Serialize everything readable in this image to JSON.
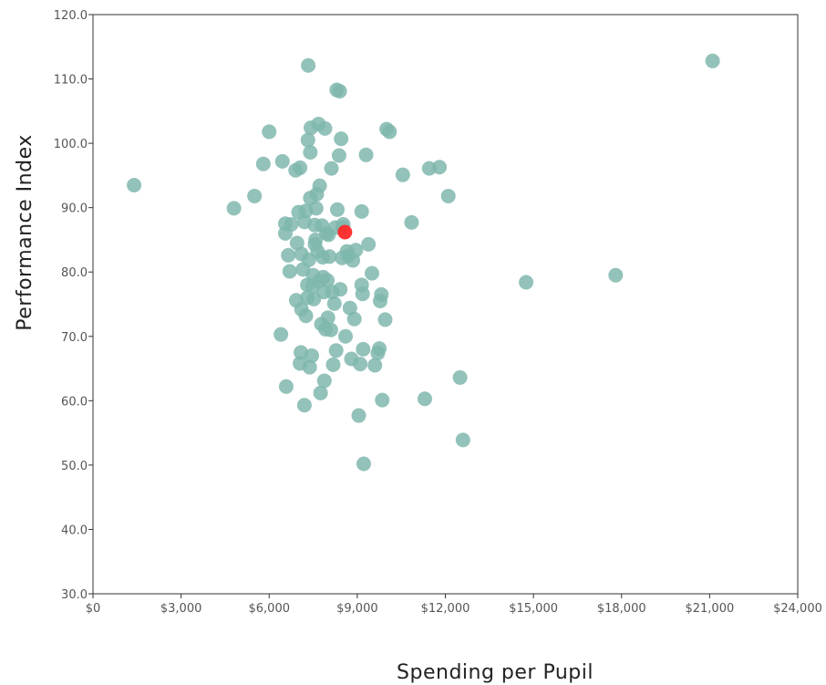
{
  "chart_data": {
    "type": "scatter",
    "xlabel": "Spending per Pupil",
    "ylabel": "Performance Index",
    "xlim": [
      0,
      24000
    ],
    "ylim": [
      30,
      120
    ],
    "x_ticks": [
      0,
      3000,
      6000,
      9000,
      12000,
      15000,
      18000,
      21000,
      24000
    ],
    "x_tick_labels": [
      "$0",
      "$3,000",
      "$6,000",
      "$9,000",
      "$12,000",
      "$15,000",
      "$18,000",
      "$21,000",
      "$24,000"
    ],
    "y_ticks": [
      30,
      40,
      50,
      60,
      70,
      80,
      90,
      100,
      110,
      120
    ],
    "y_tick_labels": [
      "30.0",
      "40.0",
      "50.0",
      "60.0",
      "70.0",
      "80.0",
      "90.0",
      "100.0",
      "110.0",
      "120.0"
    ],
    "grid": false,
    "colors": {
      "point": "#7fb7ad",
      "highlight": "#ff2a2a",
      "axis": "#333333"
    },
    "series": [
      {
        "points": [
          [
            1400,
            93.5
          ],
          [
            4800,
            89.9
          ],
          [
            5500,
            91.8
          ],
          [
            5800,
            96.8
          ],
          [
            6000,
            101.8
          ],
          [
            6400,
            70.3
          ],
          [
            6450,
            97.2
          ],
          [
            6550,
            87.5
          ],
          [
            6580,
            62.2
          ],
          [
            6550,
            86.0
          ],
          [
            6650,
            82.6
          ],
          [
            6700,
            80.1
          ],
          [
            6750,
            87.4
          ],
          [
            6900,
            95.8
          ],
          [
            6920,
            75.6
          ],
          [
            6950,
            84.5
          ],
          [
            7000,
            89.3
          ],
          [
            7050,
            96.2
          ],
          [
            7050,
            65.8
          ],
          [
            7080,
            67.5
          ],
          [
            7100,
            74.2
          ],
          [
            7100,
            82.8
          ],
          [
            7150,
            80.4
          ],
          [
            7200,
            59.3
          ],
          [
            7200,
            87.8
          ],
          [
            7250,
            89.5
          ],
          [
            7250,
            73.2
          ],
          [
            7300,
            78.0
          ],
          [
            7300,
            76.0
          ],
          [
            7320,
            100.5
          ],
          [
            7330,
            112.1
          ],
          [
            7350,
            81.9
          ],
          [
            7380,
            65.2
          ],
          [
            7400,
            98.6
          ],
          [
            7400,
            91.5
          ],
          [
            7420,
            102.4
          ],
          [
            7450,
            67.0
          ],
          [
            7480,
            77.8
          ],
          [
            7500,
            79.5
          ],
          [
            7520,
            75.8
          ],
          [
            7550,
            87.3
          ],
          [
            7560,
            84.3
          ],
          [
            7580,
            85.0
          ],
          [
            7600,
            89.9
          ],
          [
            7620,
            92.1
          ],
          [
            7650,
            83.2
          ],
          [
            7680,
            103.0
          ],
          [
            7700,
            78.6
          ],
          [
            7720,
            93.4
          ],
          [
            7750,
            61.2
          ],
          [
            7780,
            71.9
          ],
          [
            7800,
            87.2
          ],
          [
            7820,
            82.3
          ],
          [
            7840,
            79.2
          ],
          [
            7860,
            76.9
          ],
          [
            7880,
            63.1
          ],
          [
            7900,
            102.3
          ],
          [
            7920,
            71.1
          ],
          [
            7950,
            86.0
          ],
          [
            7980,
            78.7
          ],
          [
            8000,
            72.9
          ],
          [
            8020,
            85.8
          ],
          [
            8050,
            82.4
          ],
          [
            8100,
            71.0
          ],
          [
            8120,
            96.1
          ],
          [
            8150,
            76.9
          ],
          [
            8180,
            65.6
          ],
          [
            8220,
            75.1
          ],
          [
            8250,
            86.9
          ],
          [
            8280,
            67.8
          ],
          [
            8300,
            108.3
          ],
          [
            8320,
            89.7
          ],
          [
            8380,
            98.1
          ],
          [
            8400,
            108.1
          ],
          [
            8420,
            77.3
          ],
          [
            8450,
            100.7
          ],
          [
            8480,
            82.2
          ],
          [
            8500,
            86.9
          ],
          [
            8520,
            87.4
          ],
          [
            8600,
            70.0
          ],
          [
            8650,
            83.2
          ],
          [
            8700,
            82.5
          ],
          [
            8750,
            74.4
          ],
          [
            8800,
            66.5
          ],
          [
            8850,
            81.8
          ],
          [
            8900,
            72.7
          ],
          [
            8950,
            83.4
          ],
          [
            9050,
            57.7
          ],
          [
            9100,
            65.7
          ],
          [
            9150,
            89.4
          ],
          [
            9150,
            78.0
          ],
          [
            9180,
            76.6
          ],
          [
            9200,
            68.0
          ],
          [
            9220,
            50.2
          ],
          [
            9300,
            98.2
          ],
          [
            9380,
            84.3
          ],
          [
            9500,
            79.8
          ],
          [
            9600,
            65.5
          ],
          [
            9700,
            67.4
          ],
          [
            9750,
            68.1
          ],
          [
            9780,
            75.5
          ],
          [
            9820,
            76.5
          ],
          [
            9850,
            60.1
          ],
          [
            9950,
            72.6
          ],
          [
            10000,
            102.2
          ],
          [
            10100,
            101.8
          ],
          [
            10550,
            95.1
          ],
          [
            10850,
            87.7
          ],
          [
            11300,
            60.3
          ],
          [
            11450,
            96.1
          ],
          [
            11800,
            96.3
          ],
          [
            12100,
            91.8
          ],
          [
            12500,
            63.6
          ],
          [
            12600,
            53.9
          ],
          [
            14750,
            78.4
          ],
          [
            17800,
            79.5
          ],
          [
            21100,
            112.8
          ]
        ]
      }
    ],
    "highlight": [
      8580,
      86.2
    ]
  }
}
